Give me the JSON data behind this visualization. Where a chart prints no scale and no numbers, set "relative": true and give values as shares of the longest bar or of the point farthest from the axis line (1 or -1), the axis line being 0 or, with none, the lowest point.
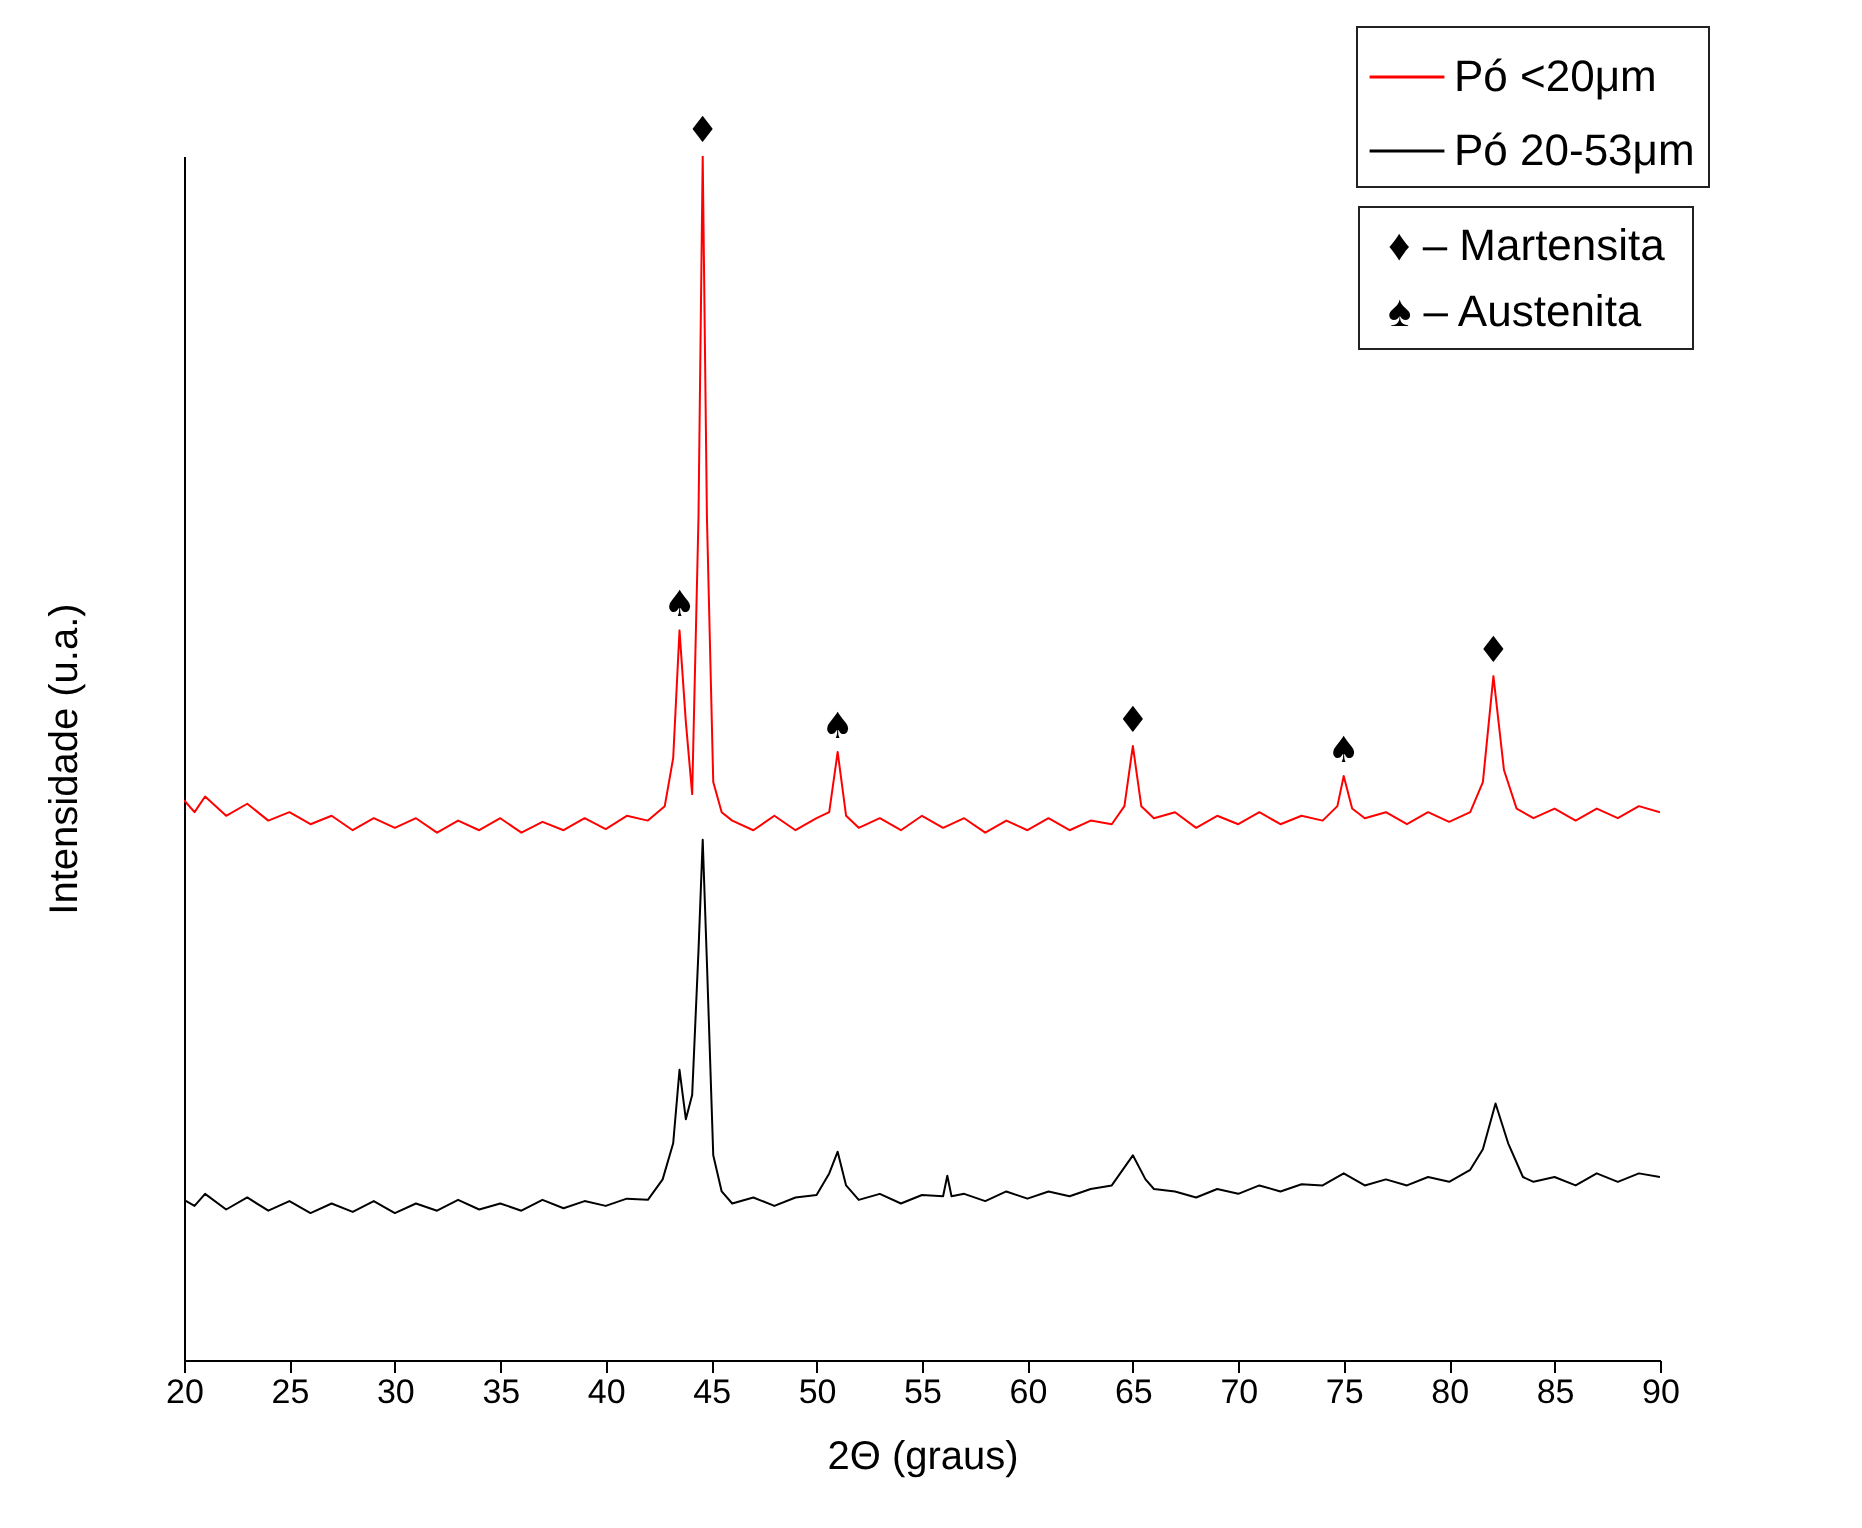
{
  "chart_data": {
    "type": "line",
    "relative": true,
    "xlabel": "2Θ (graus)",
    "ylabel": "Intensidade (u.a.)",
    "xlim": [
      20,
      90
    ],
    "xticks": [
      20,
      25,
      30,
      35,
      40,
      45,
      50,
      55,
      60,
      65,
      70,
      75,
      80,
      85,
      90
    ],
    "grid": false,
    "legend": "top right",
    "annotations": [
      {
        "text": "♠",
        "x": 43.5,
        "y": 0.606
      },
      {
        "text": "♦",
        "x": 44.6,
        "y": 1.0
      },
      {
        "text": "♠",
        "x": 51,
        "y": 0.505
      },
      {
        "text": "♦",
        "x": 65,
        "y": 0.51
      },
      {
        "text": "♠",
        "x": 75,
        "y": 0.485
      },
      {
        "text": "♦",
        "x": 82.1,
        "y": 0.568
      },
      "♦ – Martensita",
      "♠ – Austenita"
    ],
    "series": [
      {
        "name": "Pó <20μm",
        "color": "#ff0000",
        "x": [
          20,
          20.5,
          21,
          22,
          23,
          24,
          25,
          26,
          27,
          28,
          29,
          30,
          31,
          32,
          33,
          34,
          35,
          36,
          37,
          38,
          39,
          40,
          41,
          42,
          42.8,
          43.2,
          43.5,
          43.8,
          44.1,
          44.4,
          44.6,
          44.8,
          45.1,
          45.5,
          46,
          47,
          48,
          49,
          50,
          50.6,
          51,
          51.4,
          52,
          53,
          54,
          55,
          56,
          57,
          58,
          59,
          60,
          61,
          62,
          63,
          64,
          64.6,
          65,
          65.4,
          66,
          67,
          68,
          69,
          70,
          71,
          72,
          73,
          74,
          74.7,
          75,
          75.4,
          76,
          77,
          78,
          79,
          80,
          81,
          81.6,
          82.1,
          82.6,
          83.2,
          84,
          85,
          86,
          87,
          88,
          89,
          90
        ],
        "values": [
          0.465,
          0.455,
          0.468,
          0.452,
          0.462,
          0.448,
          0.455,
          0.445,
          0.452,
          0.44,
          0.45,
          0.442,
          0.45,
          0.438,
          0.448,
          0.44,
          0.45,
          0.438,
          0.447,
          0.44,
          0.45,
          0.441,
          0.452,
          0.448,
          0.46,
          0.5,
          0.606,
          0.53,
          0.47,
          0.7,
          1.0,
          0.7,
          0.48,
          0.455,
          0.448,
          0.44,
          0.452,
          0.44,
          0.45,
          0.455,
          0.505,
          0.452,
          0.442,
          0.45,
          0.44,
          0.452,
          0.442,
          0.45,
          0.438,
          0.448,
          0.44,
          0.45,
          0.44,
          0.448,
          0.445,
          0.46,
          0.51,
          0.46,
          0.45,
          0.455,
          0.442,
          0.452,
          0.445,
          0.455,
          0.445,
          0.452,
          0.448,
          0.46,
          0.485,
          0.458,
          0.45,
          0.455,
          0.445,
          0.455,
          0.447,
          0.455,
          0.48,
          0.568,
          0.49,
          0.458,
          0.45,
          0.458,
          0.448,
          0.458,
          0.45,
          0.46,
          0.455
        ]
      },
      {
        "name": "Pó 20-53μm",
        "color": "#000000",
        "x": [
          20,
          20.5,
          21,
          22,
          23,
          24,
          25,
          26,
          27,
          28,
          29,
          30,
          31,
          32,
          33,
          34,
          35,
          36,
          37,
          38,
          39,
          40,
          41,
          42,
          42.7,
          43.2,
          43.5,
          43.8,
          44.1,
          44.4,
          44.6,
          44.8,
          45.1,
          45.5,
          46,
          47,
          48,
          49,
          50,
          50.6,
          51,
          51.4,
          52,
          53,
          54,
          55,
          56,
          56.2,
          56.4,
          57,
          58,
          59,
          60,
          61,
          62,
          63,
          64,
          64.6,
          65,
          65.6,
          66,
          67,
          68,
          69,
          70,
          71,
          72,
          73,
          74,
          75,
          76,
          77,
          78,
          79,
          80,
          81,
          81.6,
          82.2,
          82.8,
          83.5,
          84,
          85,
          86,
          87,
          88,
          89,
          90
        ],
        "values": [
          0.133,
          0.128,
          0.138,
          0.125,
          0.135,
          0.124,
          0.132,
          0.122,
          0.13,
          0.123,
          0.132,
          0.122,
          0.13,
          0.124,
          0.133,
          0.125,
          0.13,
          0.124,
          0.133,
          0.126,
          0.132,
          0.128,
          0.134,
          0.133,
          0.15,
          0.18,
          0.241,
          0.2,
          0.22,
          0.34,
          0.432,
          0.33,
          0.17,
          0.14,
          0.13,
          0.135,
          0.128,
          0.135,
          0.137,
          0.155,
          0.173,
          0.145,
          0.133,
          0.138,
          0.13,
          0.137,
          0.136,
          0.153,
          0.136,
          0.138,
          0.132,
          0.14,
          0.134,
          0.14,
          0.136,
          0.142,
          0.145,
          0.16,
          0.17,
          0.15,
          0.142,
          0.14,
          0.135,
          0.142,
          0.138,
          0.145,
          0.14,
          0.146,
          0.145,
          0.155,
          0.145,
          0.15,
          0.145,
          0.152,
          0.148,
          0.158,
          0.175,
          0.213,
          0.18,
          0.152,
          0.148,
          0.152,
          0.145,
          0.155,
          0.148,
          0.155,
          0.152
        ]
      }
    ]
  }
}
